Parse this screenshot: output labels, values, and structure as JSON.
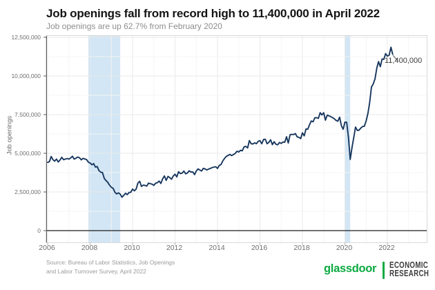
{
  "header": {
    "title": "Job openings fall from record high to 11,400,000 in April 2022",
    "subtitle": "Job openings are up 62.7% from February 2020"
  },
  "chart_data": {
    "type": "line",
    "title": "Job openings fall from record high to 11,400,000 in April 2022",
    "subtitle": "Job openings are up 62.7% from February 2020",
    "xlabel": "",
    "ylabel": "Job openings",
    "xlim": [
      2005.935,
      2023.852
    ],
    "ylim": [
      0,
      12500000
    ],
    "grid": true,
    "x_ticks": [
      {
        "v": 2006,
        "label": "2006"
      },
      {
        "v": 2008,
        "label": "2008"
      },
      {
        "v": 2010,
        "label": "2010"
      },
      {
        "v": 2012,
        "label": "2012"
      },
      {
        "v": 2014,
        "label": "2014"
      },
      {
        "v": 2016,
        "label": "2016"
      },
      {
        "v": 2018,
        "label": "2018"
      },
      {
        "v": 2020,
        "label": "2020"
      },
      {
        "v": 2022,
        "label": "2022"
      }
    ],
    "y_ticks": [
      {
        "v": 0,
        "label": "0"
      },
      {
        "v": 2500000,
        "label": "2,500,000"
      },
      {
        "v": 5000000,
        "label": "5,000,000"
      },
      {
        "v": 7500000,
        "label": "7,500,000"
      },
      {
        "v": 10000000,
        "label": "10,000,000"
      },
      {
        "v": 12500000,
        "label": "12,500,000"
      }
    ],
    "y_minor_step": 1250000,
    "x_minor_step": 1,
    "recession_bands": [
      {
        "start": 2007.917,
        "end": 2009.417
      },
      {
        "start": 2020.0,
        "end": 2020.25
      }
    ],
    "annotation": {
      "text": "11,400,000",
      "x": 2022.25,
      "y": 11400000
    },
    "series": [
      {
        "name": "Job openings",
        "unit": "thousands",
        "x_start_year": 2006,
        "x_step_years": 0.0833333,
        "values": [
          4413,
          4461,
          4795,
          4586,
          4492,
          4623,
          4437,
          4567,
          4739,
          4583,
          4627,
          4661,
          4624,
          4696,
          4807,
          4624,
          4685,
          4759,
          4712,
          4576,
          4670,
          4633,
          4594,
          4428,
          4372,
          4259,
          4336,
          4108,
          4142,
          3882,
          3773,
          3760,
          3373,
          3230,
          3119,
          2937,
          2800,
          2738,
          2480,
          2373,
          2441,
          2362,
          2158,
          2281,
          2413,
          2327,
          2468,
          2478,
          2686,
          2576,
          2680,
          3070,
          3193,
          2858,
          2943,
          2924,
          2881,
          3072,
          3035,
          3006,
          2924,
          3069,
          3098,
          3201,
          3051,
          3354,
          3535,
          3249,
          3506,
          3427,
          3325,
          3535,
          3646,
          3471,
          3809,
          3686,
          3717,
          3848,
          3676,
          3726,
          3867,
          3786,
          3797,
          3620,
          3852,
          3991,
          3913,
          3858,
          4028,
          3985,
          3921,
          3980,
          4023,
          4075,
          4106,
          4128,
          4016,
          4219,
          4272,
          4508,
          4675,
          4799,
          4868,
          4924,
          4853,
          4921,
          4987,
          5135,
          5085,
          5191,
          5160,
          5413,
          5448,
          5346,
          5820,
          5616,
          5602,
          5676,
          5620,
          5775,
          5816,
          5616,
          5893,
          5908,
          5620,
          5703,
          5875,
          5560,
          5752,
          5580,
          5548,
          5697,
          5637,
          5727,
          5720,
          6071,
          5666,
          6199,
          6221,
          6210,
          6278,
          6063,
          6030,
          5952,
          6322,
          6131,
          6571,
          6556,
          6847,
          7090,
          7036,
          7293,
          7301,
          7259,
          7626,
          7479,
          7625,
          7142,
          7465,
          7426,
          7371,
          7307,
          7234,
          7123,
          7076,
          7336,
          6787,
          6552,
          7012,
          7004,
          6011,
          4603,
          5371,
          6036,
          6697,
          6478,
          6494,
          6632,
          6731,
          6752,
          7099,
          7590,
          8288,
          9286,
          9483,
          9808,
          10500,
          10928,
          10602,
          11098,
          11075,
          11448,
          11283,
          11344,
          11855,
          11400
        ]
      }
    ],
    "colors": {
      "line": "#17365d",
      "recession_band": "#d2e6f5",
      "zero_line": "#1c1c1c",
      "major_grid": "#e9e9e9",
      "minor_grid": "#f4f4f4",
      "axis": "#5f5f5f",
      "panel_border": "#d9d9d9"
    }
  },
  "footer": {
    "source_line1": "Source: Bureau of Labor Statistics, Job Openings",
    "source_line2": "and Labor Turnover Survey, April 2022",
    "brand": "glassdoor",
    "brand_color": "#0caa41",
    "org_line1": "ECONOMIC",
    "org_line2": "RESEARCH"
  }
}
